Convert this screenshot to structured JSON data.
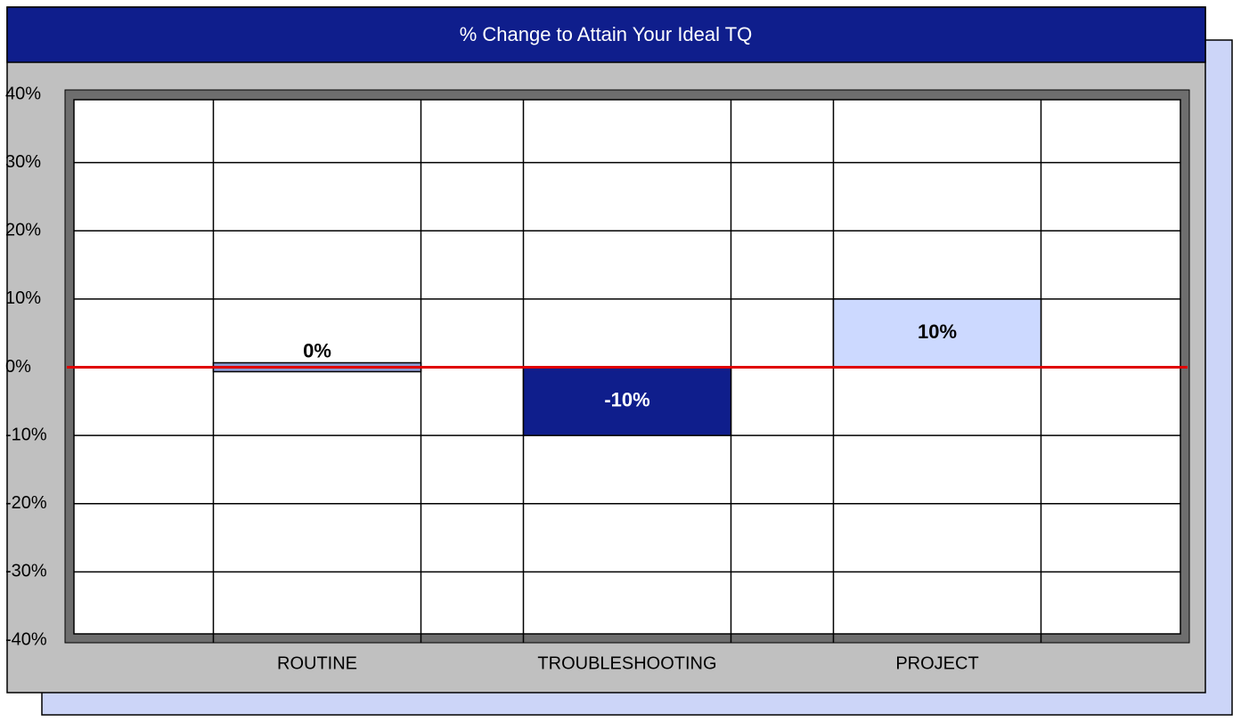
{
  "chart_data": {
    "type": "bar",
    "title": "% Change to Attain Your Ideal TQ",
    "categories": [
      "ROUTINE",
      "TROUBLESHOOTING",
      "PROJECT"
    ],
    "values": [
      0,
      -10,
      10
    ],
    "value_labels": [
      "0%",
      "-10%",
      "10%"
    ],
    "colors": [
      "#8c9bd2",
      "#0f1e8c",
      "#ccd9ff"
    ],
    "ylim": [
      -40,
      40
    ],
    "yticks": [
      {
        "value": -40,
        "label": "-40%"
      },
      {
        "value": -30,
        "label": "-30%"
      },
      {
        "value": -20,
        "label": "-20%"
      },
      {
        "value": -10,
        "label": "-10%"
      },
      {
        "value": 0,
        "label": "0%"
      },
      {
        "value": 10,
        "label": "10%"
      },
      {
        "value": 20,
        "label": "20%"
      },
      {
        "value": 30,
        "label": "30%"
      },
      {
        "value": 40,
        "label": "40%"
      }
    ],
    "grid": true
  }
}
